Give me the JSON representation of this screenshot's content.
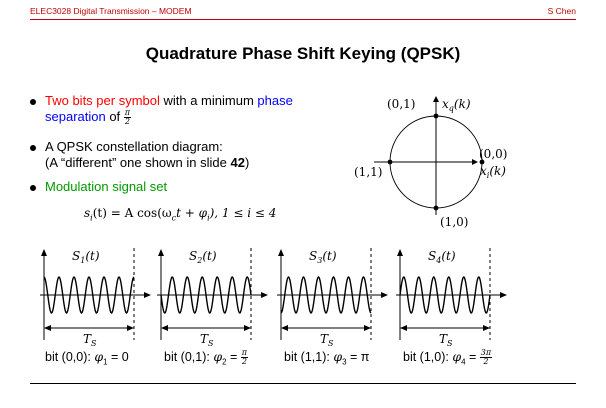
{
  "header": {
    "left": "ELEC3028 Digital Transmission – MODEM",
    "right": "S Chen"
  },
  "title": "Quadrature Phase Shift Keying (QPSK)",
  "bullets": {
    "b1": {
      "part_red": "Two bits per symbol",
      "part_black": " with a minimum ",
      "part_blue_1": "phase",
      "part_blue_2": "separation",
      "part_of": " of ",
      "frac_num": "π",
      "frac_den": "2"
    },
    "b2": {
      "line1": "A QPSK constellation diagram:",
      "line2_a": "(A “different” one shown in slide ",
      "line2_b": "42",
      "line2_c": ")"
    },
    "b3": {
      "label": "Modulation signal set"
    },
    "formula": "s_i(t) = A cos(ω_c t + φ_i),  1 ≤ i ≤ 4",
    "formula_parts": {
      "lhs": "s",
      "lhs_sub": "i",
      "mid": "(t) = A cos(ω",
      "c": "c",
      "t_plus": "t + φ",
      "i": "i",
      "tail": "),   1 ≤ i ≤ 4"
    }
  },
  "constellation": {
    "points": [
      {
        "label": "(0,1)",
        "angle_deg": 90
      },
      {
        "label": "(0,0)",
        "angle_deg": 0
      },
      {
        "label": "(1,1)",
        "angle_deg": 180
      },
      {
        "label": "(1,0)",
        "angle_deg": 270
      }
    ],
    "axis_q": "x",
    "axis_q_sub": "q",
    "axis_q_arg": "(k)",
    "axis_i": "x",
    "axis_i_sub": "i",
    "axis_i_arg": "(k)"
  },
  "waveforms": {
    "panels": [
      {
        "name": "S",
        "sub": "1",
        "arg": "(t)",
        "phase_deg": 0,
        "caption_bits": "bit (0,0): ",
        "phi": "φ",
        "phi_sub": "1",
        "eq": " = 0"
      },
      {
        "name": "S",
        "sub": "2",
        "arg": "(t)",
        "phase_deg": 90,
        "caption_bits": "bit (0,1): ",
        "phi": "φ",
        "phi_sub": "2",
        "eq": " = ",
        "frac_num": "π",
        "frac_den": "2"
      },
      {
        "name": "S",
        "sub": "3",
        "arg": "(t)",
        "phase_deg": 180,
        "caption_bits": "bit (1,1): ",
        "phi": "φ",
        "phi_sub": "3",
        "eq": " = π"
      },
      {
        "name": "S",
        "sub": "4",
        "arg": "(t)",
        "phase_deg": 270,
        "caption_bits": "bit (1,0): ",
        "phi": "φ",
        "phi_sub": "4",
        "eq": " = ",
        "frac_num": "3π",
        "frac_den": "2"
      }
    ],
    "period_label": "T",
    "period_sub": "S",
    "cycles": 6
  }
}
